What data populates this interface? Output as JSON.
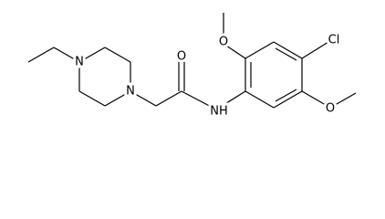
{
  "atoms": [
    "N",
    "N",
    "O",
    "NH",
    "Cl",
    "O",
    "O"
  ]
}
